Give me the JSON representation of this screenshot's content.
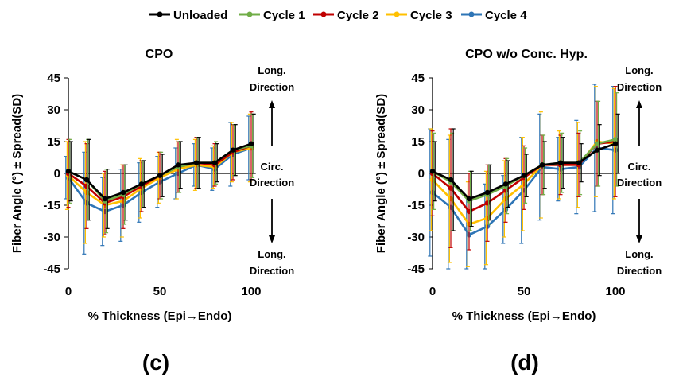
{
  "chart_data": [
    {
      "type": "line",
      "panel_letter": "(c)",
      "title": "CPO",
      "xlabel": "% Thickness (Epi→Endo)",
      "ylabel": "Fiber Angle (°) ± Spread(SD)",
      "xlim": [
        0,
        100
      ],
      "ylim": [
        -45,
        45
      ],
      "xticks": [
        0,
        50,
        100
      ],
      "yticks": [
        45,
        30,
        15,
        0,
        -15,
        -30,
        -45
      ],
      "direction_labels": {
        "top": [
          "Long.",
          "Direction"
        ],
        "middle": [
          "Circ.",
          "Direction"
        ],
        "bottom": [
          "Long.",
          "Direction"
        ]
      },
      "x": [
        0,
        10,
        20,
        30,
        40,
        50,
        60,
        70,
        80,
        90,
        100
      ],
      "series": [
        {
          "name": "Cycle 4",
          "color": "#2e75b6",
          "values": [
            -2,
            -14,
            -18,
            -15,
            -9,
            -4,
            0,
            4,
            2,
            9,
            12
          ],
          "sd": [
            10,
            24,
            16,
            17,
            14,
            12,
            12,
            10,
            10,
            15,
            15
          ]
        },
        {
          "name": "Cycle 3",
          "color": "#ffc000",
          "values": [
            -1,
            -9,
            -15,
            -13,
            -7,
            -2,
            2,
            4,
            3,
            10,
            12
          ],
          "sd": [
            16,
            24,
            15,
            17,
            14,
            12,
            14,
            12,
            10,
            14,
            16
          ]
        },
        {
          "name": "Cycle 2",
          "color": "#c00000",
          "values": [
            0,
            -6,
            -14,
            -11,
            -6,
            -1,
            3,
            5,
            4,
            10,
            13
          ],
          "sd": [
            16,
            20,
            15,
            15,
            12,
            11,
            12,
            12,
            10,
            13,
            16
          ]
        },
        {
          "name": "Cycle 1",
          "color": "#70ad47",
          "values": [
            1,
            -3,
            -13,
            -10,
            -5,
            -1,
            3,
            5,
            5,
            11,
            13
          ],
          "sd": [
            15,
            19,
            15,
            14,
            11,
            11,
            12,
            12,
            10,
            12,
            15
          ]
        },
        {
          "name": "Unloaded",
          "color": "#000000",
          "values": [
            1,
            -3,
            -12,
            -9,
            -5,
            -1,
            4,
            5,
            5,
            11,
            14
          ],
          "sd": [
            14,
            19,
            14,
            13,
            11,
            10,
            11,
            12,
            9,
            12,
            14
          ]
        }
      ]
    },
    {
      "type": "line",
      "panel_letter": "(d)",
      "title": "CPO w/o Conc. Hyp.",
      "xlabel": "% Thickness (Epi→Endo)",
      "ylabel": "Fiber Angle (°) ± Spread(SD)",
      "xlim": [
        0,
        100
      ],
      "ylim": [
        -45,
        45
      ],
      "xticks": [
        0,
        50,
        100
      ],
      "yticks": [
        45,
        30,
        15,
        0,
        -15,
        -30,
        -45
      ],
      "direction_labels": {
        "top": [
          "Long.",
          "Direction"
        ],
        "middle": [
          "Circ.",
          "Direction"
        ],
        "bottom": [
          "Long.",
          "Direction"
        ]
      },
      "x": [
        0,
        10,
        20,
        30,
        40,
        50,
        60,
        70,
        80,
        90,
        100
      ],
      "series": [
        {
          "name": "Cycle 4",
          "color": "#2e75b6",
          "values": [
            -9,
            -16,
            -29,
            -25,
            -17,
            -8,
            3,
            2,
            3,
            12,
            11
          ],
          "sd": [
            30,
            32,
            18,
            20,
            16,
            25,
            25,
            15,
            22,
            30,
            30
          ]
        },
        {
          "name": "Cycle 3",
          "color": "#ffc000",
          "values": [
            -3,
            -12,
            -24,
            -21,
            -12,
            -5,
            4,
            4,
            4,
            15,
            14
          ],
          "sd": [
            24,
            30,
            20,
            22,
            18,
            22,
            25,
            16,
            20,
            26,
            26
          ]
        },
        {
          "name": "Cycle 2",
          "color": "#c00000",
          "values": [
            0,
            -7,
            -18,
            -14,
            -8,
            -2,
            4,
            4,
            4,
            14,
            15
          ],
          "sd": [
            20,
            28,
            18,
            18,
            15,
            15,
            14,
            14,
            15,
            20,
            26
          ]
        },
        {
          "name": "Cycle 1",
          "color": "#70ad47",
          "values": [
            1,
            -4,
            -13,
            -10,
            -6,
            -1,
            4,
            5,
            5,
            14,
            16
          ],
          "sd": [
            18,
            23,
            14,
            14,
            13,
            13,
            14,
            14,
            15,
            20,
            22
          ]
        },
        {
          "name": "Unloaded",
          "color": "#000000",
          "values": [
            1,
            -3,
            -12,
            -9,
            -5,
            -1,
            4,
            5,
            5,
            11,
            14
          ],
          "sd": [
            14,
            24,
            13,
            13,
            11,
            10,
            11,
            12,
            9,
            12,
            14
          ]
        }
      ]
    }
  ],
  "legend": {
    "placement": "top",
    "entries": [
      {
        "name": "Unloaded",
        "color": "#000000"
      },
      {
        "name": "Cycle 1",
        "color": "#70ad47"
      },
      {
        "name": "Cycle 2",
        "color": "#c00000"
      },
      {
        "name": "Cycle 3",
        "color": "#ffc000"
      },
      {
        "name": "Cycle 4",
        "color": "#2e75b6"
      }
    ]
  }
}
